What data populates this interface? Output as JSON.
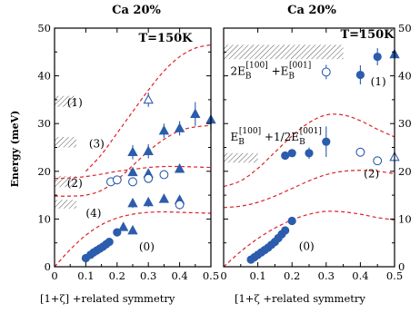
{
  "panels": [
    {
      "id": "left",
      "title": "Ca 20%",
      "temperature": "T=150K",
      "xlim": [
        0,
        0.5
      ],
      "ylim": [
        0,
        50
      ],
      "footer": "[1+ζ] +related symmetry",
      "labels": [
        {
          "text": "(1)",
          "x": 0.04,
          "y": 34.4
        },
        {
          "text": "(3)",
          "x": 0.11,
          "y": 25.8
        },
        {
          "text": "(2)",
          "x": 0.04,
          "y": 17.5
        },
        {
          "text": "(4)",
          "x": 0.1,
          "y": 11.2
        },
        {
          "text": "(0)",
          "x": 0.27,
          "y": 4.2
        }
      ]
    },
    {
      "id": "right",
      "title": "Ca 20%",
      "temperature": "T=150K",
      "xlim": [
        0,
        0.5
      ],
      "ylim": [
        0,
        50
      ],
      "footer": "[1+ζ +related symmetry",
      "labels": [
        {
          "text": "(1)",
          "x": 0.43,
          "y": 38.8
        },
        {
          "text": "(2)",
          "x": 0.41,
          "y": 19.5
        },
        {
          "text": "(0)",
          "x": 0.22,
          "y": 4.3
        }
      ],
      "formulas": [
        {
          "id": "f1",
          "x": 0.02,
          "y": 41.0,
          "parts": [
            [
              "2E",
              ""
            ],
            [
              "B",
              "sub"
            ],
            [
              "[100]",
              "sup"
            ],
            [
              " +E",
              ""
            ],
            [
              "B",
              "sub"
            ],
            [
              "[001]",
              "sup"
            ]
          ]
        },
        {
          "id": "f2",
          "x": 0.02,
          "y": 27.2,
          "parts": [
            [
              "E",
              ""
            ],
            [
              "B",
              "sub"
            ],
            [
              "[100]",
              "sup"
            ],
            [
              " +1/2E",
              ""
            ],
            [
              "B",
              "sub"
            ],
            [
              "[001]",
              "sup"
            ]
          ]
        }
      ]
    }
  ],
  "axis_label": "Energy (meV)",
  "chart_data": [
    {
      "type": "scatter",
      "panel": "left",
      "title": "Ca 20%",
      "xlabel": "[1+ζ] +related symmetry",
      "ylabel": "Energy (meV)",
      "xlim": [
        0,
        0.5
      ],
      "ylim": [
        0,
        50
      ],
      "xticks": [
        0,
        0.1,
        0.2,
        0.3,
        0.4,
        0.5
      ],
      "yticks": [
        0,
        10,
        20,
        30,
        40,
        50
      ],
      "grid": false,
      "series": [
        {
          "marker": "filled-circle",
          "points": [
            [
              0.1,
              1.8
            ],
            [
              0.115,
              2.5
            ],
            [
              0.125,
              3.0
            ],
            [
              0.135,
              3.4
            ],
            [
              0.145,
              3.8
            ],
            [
              0.155,
              4.2
            ],
            [
              0.165,
              4.7
            ],
            [
              0.175,
              5.2
            ],
            [
              0.2,
              7.2
            ]
          ]
        },
        {
          "marker": "filled-triangle",
          "points": [
            [
              0.22,
              8.3
            ],
            [
              0.25,
              7.6
            ],
            [
              0.25,
              13.3
            ],
            [
              0.3,
              13.5
            ],
            [
              0.35,
              14.2
            ],
            [
              0.4,
              14.0
            ],
            [
              0.25,
              19.8
            ],
            [
              0.3,
              19.5
            ],
            [
              0.4,
              20.5
            ],
            [
              0.25,
              24.0
            ],
            [
              0.3,
              24.2
            ],
            [
              0.35,
              28.5
            ],
            [
              0.4,
              29.0
            ],
            [
              0.45,
              32.0
            ],
            [
              0.5,
              30.8
            ]
          ],
          "error": [
            0,
            0,
            1.0,
            1.0,
            0,
            0,
            0,
            0,
            0,
            1.5,
            1.5,
            1.5,
            1.5,
            2.5,
            2.5
          ]
        },
        {
          "marker": "open-circle",
          "points": [
            [
              0.18,
              17.8
            ],
            [
              0.2,
              18.2
            ],
            [
              0.25,
              17.8
            ],
            [
              0.3,
              18.5
            ],
            [
              0.35,
              19.3
            ],
            [
              0.4,
              13.0
            ]
          ],
          "error": [
            0.8,
            0,
            0,
            0,
            0,
            1.0
          ]
        },
        {
          "marker": "open-triangle",
          "points": [
            [
              0.3,
              35.0
            ]
          ],
          "error": [
            1.5
          ]
        }
      ],
      "curves": [
        {
          "style": "red-dashed",
          "x": [
            0,
            0.05,
            0.1,
            0.15,
            0.2,
            0.25,
            0.3,
            0.35,
            0.4,
            0.45,
            0.5
          ],
          "y": [
            0,
            3.6,
            6.6,
            8.8,
            10.2,
            11.0,
            11.4,
            11.5,
            11.4,
            11.3,
            11.2
          ]
        },
        {
          "style": "red-dashed",
          "x": [
            0,
            0.05,
            0.1,
            0.15,
            0.2,
            0.25,
            0.3,
            0.35,
            0.4,
            0.45,
            0.5
          ],
          "y": [
            14.8,
            14.8,
            15.0,
            16.0,
            18.2,
            21.2,
            24.2,
            26.7,
            28.5,
            29.3,
            29.6
          ]
        },
        {
          "style": "red-dashed",
          "x": [
            0.1,
            0.15,
            0.2,
            0.25,
            0.3,
            0.35,
            0.4,
            0.45,
            0.5
          ],
          "y": [
            20.0,
            23.5,
            28.0,
            32.5,
            37.0,
            41.0,
            44.0,
            45.8,
            46.5
          ]
        },
        {
          "style": "red-dashed",
          "x": [
            0,
            0.05,
            0.1,
            0.15,
            0.2,
            0.25,
            0.3,
            0.35,
            0.4,
            0.45,
            0.5
          ],
          "y": [
            18.5,
            18.6,
            18.9,
            19.4,
            20.0,
            20.4,
            20.8,
            21.0,
            21.0,
            20.9,
            20.8
          ]
        }
      ],
      "bands": [
        {
          "x": [
            0.0,
            0.07
          ],
          "y": [
            33.5,
            35.8
          ]
        },
        {
          "x": [
            0.0,
            0.07
          ],
          "y": [
            25.0,
            27.2
          ]
        },
        {
          "x": [
            0.0,
            0.07
          ],
          "y": [
            16.7,
            19.0
          ]
        },
        {
          "x": [
            0.0,
            0.07
          ],
          "y": [
            12.2,
            14.0
          ]
        }
      ]
    },
    {
      "type": "scatter",
      "panel": "right",
      "title": "Ca 20%",
      "xlabel": "[1+ζ +related symmetry",
      "ylabel": "",
      "xlim": [
        0,
        0.5
      ],
      "ylim": [
        0,
        50
      ],
      "xticks": [
        0,
        0.1,
        0.2,
        0.3,
        0.4,
        0.5
      ],
      "yticks": [
        0,
        10,
        20,
        30,
        40,
        50
      ],
      "grid": false,
      "series": [
        {
          "marker": "filled-circle",
          "points": [
            [
              0.08,
              1.5
            ],
            [
              0.09,
              2.0
            ],
            [
              0.1,
              2.5
            ],
            [
              0.11,
              3.0
            ],
            [
              0.12,
              3.5
            ],
            [
              0.13,
              4.0
            ],
            [
              0.14,
              4.6
            ],
            [
              0.15,
              5.2
            ],
            [
              0.16,
              6.0
            ],
            [
              0.17,
              6.8
            ],
            [
              0.18,
              7.6
            ],
            [
              0.2,
              9.6
            ],
            [
              0.18,
              23.3
            ],
            [
              0.2,
              23.8
            ],
            [
              0.25,
              23.8
            ],
            [
              0.3,
              26.2
            ],
            [
              0.4,
              40.2
            ],
            [
              0.45,
              44.0
            ]
          ],
          "error": [
            0,
            0,
            0,
            0,
            0,
            0,
            0,
            0,
            0,
            0,
            0,
            0,
            0.8,
            0,
            1.2,
            3.2,
            2.0,
            1.8
          ]
        },
        {
          "marker": "open-circle",
          "points": [
            [
              0.3,
              40.8
            ],
            [
              0.4,
              24.0
            ],
            [
              0.45,
              22.2
            ]
          ],
          "error": [
            1.5,
            0,
            0
          ]
        },
        {
          "marker": "filled-triangle",
          "points": [
            [
              0.5,
              44.5
            ]
          ],
          "error": [
            0
          ]
        },
        {
          "marker": "open-triangle",
          "points": [
            [
              0.5,
              23.0
            ]
          ],
          "error": [
            0
          ]
        }
      ],
      "curves": [
        {
          "style": "red-dashed",
          "x": [
            0,
            0.05,
            0.1,
            0.15,
            0.2,
            0.25,
            0.3,
            0.35,
            0.4,
            0.45,
            0.5
          ],
          "y": [
            0,
            3.2,
            5.9,
            8.1,
            9.8,
            11.0,
            11.6,
            11.5,
            11.0,
            10.3,
            9.8
          ]
        },
        {
          "style": "red-dashed",
          "x": [
            0,
            0.05,
            0.1,
            0.15,
            0.2,
            0.25,
            0.3,
            0.35,
            0.4,
            0.45,
            0.5
          ],
          "y": [
            12.4,
            12.7,
            13.5,
            14.8,
            16.4,
            18.0,
            19.3,
            20.0,
            20.2,
            20.0,
            19.5
          ]
        },
        {
          "style": "red-dashed",
          "x": [
            0,
            0.05,
            0.1,
            0.15,
            0.2,
            0.25,
            0.3,
            0.35,
            0.4,
            0.45,
            0.5
          ],
          "y": [
            16.8,
            18.0,
            20.6,
            24.0,
            27.4,
            30.2,
            31.8,
            31.8,
            30.6,
            28.8,
            27.2
          ]
        }
      ],
      "bands": [
        {
          "x": [
            0.0,
            0.35
          ],
          "y": [
            43.5,
            46.5
          ]
        },
        {
          "x": [
            0.0,
            0.1
          ],
          "y": [
            21.8,
            23.8
          ]
        }
      ]
    }
  ]
}
